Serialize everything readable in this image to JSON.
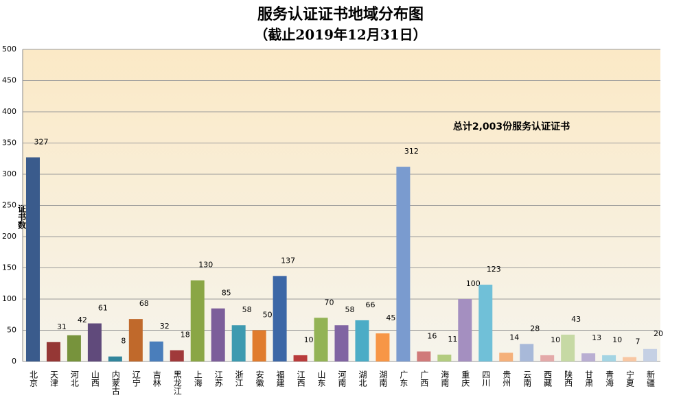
{
  "chart_data": {
    "type": "bar",
    "title": "服务认证证书地域分布图",
    "subtitle": "（截止2019年12月31日）",
    "annotation": "总计2,003份服务认证证书",
    "y_label": "证书数",
    "categories": [
      "北京",
      "天津",
      "河北",
      "山西",
      "内蒙古",
      "辽宁",
      "吉林",
      "黑龙江",
      "上海",
      "江苏",
      "浙江",
      "安徽",
      "福建",
      "江西",
      "山东",
      "河南",
      "湖北",
      "湖南",
      "广东",
      "广西",
      "海南",
      "重庆",
      "四川",
      "贵州",
      "云南",
      "西藏",
      "陕西",
      "甘肃",
      "青海",
      "宁夏",
      "新疆"
    ],
    "values": [
      327,
      31,
      42,
      61,
      8,
      68,
      32,
      18,
      130,
      85,
      58,
      50,
      137,
      10,
      70,
      58,
      66,
      45,
      312,
      16,
      11,
      100,
      123,
      14,
      28,
      10,
      43,
      13,
      10,
      7,
      20
    ],
    "colors": [
      "#3a5b8c",
      "#953735",
      "#77933c",
      "#604a7b",
      "#31859c",
      "#c0692b",
      "#4a7ebb",
      "#a0393a",
      "#8aa645",
      "#7c5e9a",
      "#3d9ab0",
      "#e07c2e",
      "#3c67a6",
      "#b83b3b",
      "#93b355",
      "#8064a2",
      "#4bacc6",
      "#f79646",
      "#7a9bcf",
      "#d07a7a",
      "#b3cc80",
      "#a48fc0",
      "#70c0d8",
      "#f5b07a",
      "#a8b9d9",
      "#e3a9a9",
      "#c6d9a4",
      "#b9aed2",
      "#a3d4e3",
      "#f8c7a3",
      "#c5d0e4"
    ],
    "ylim": [
      0,
      500
    ],
    "yticks": [
      0,
      50,
      100,
      150,
      200,
      250,
      300,
      350,
      400,
      450,
      500
    ],
    "grid": true
  }
}
